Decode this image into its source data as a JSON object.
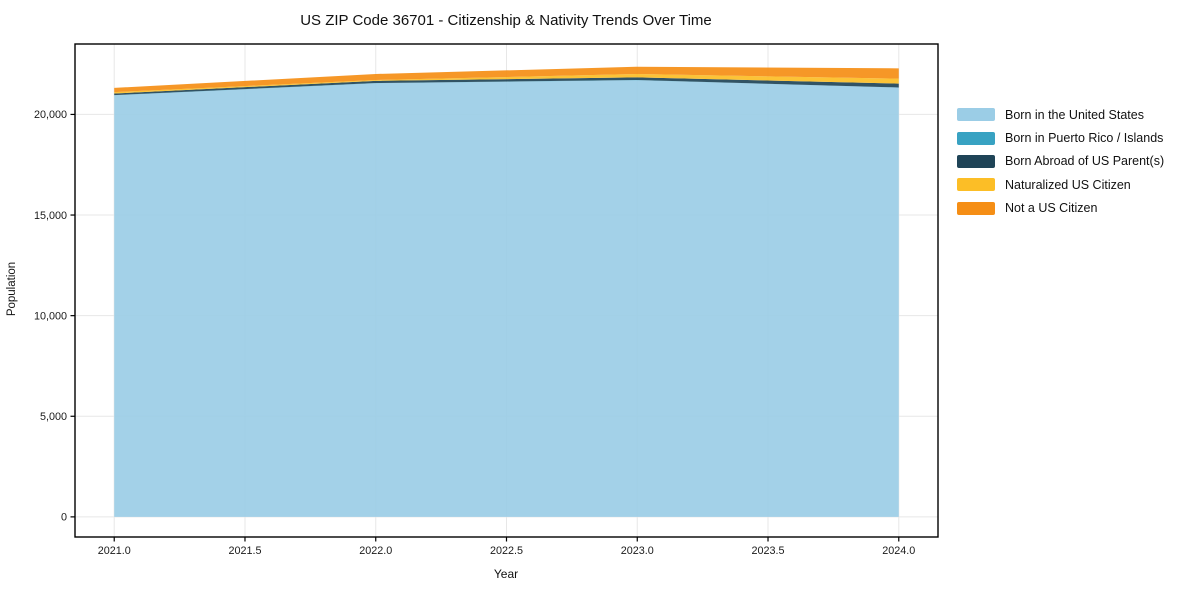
{
  "page": {
    "background": "#ffffff",
    "text_color": "#1a1a1a",
    "grid_color": "#e7e7e7",
    "spine_color": "#000000"
  },
  "chart_data": {
    "type": "area",
    "stacked": true,
    "title": "US ZIP Code 36701 - Citizenship & Nativity Trends Over Time",
    "xlabel": "Year",
    "ylabel": "Population",
    "x": [
      2021,
      2022,
      2023,
      2024
    ],
    "series": [
      {
        "name": "Born in the United States",
        "color": "#9bcde6",
        "values": [
          20950,
          21550,
          21700,
          21330
        ]
      },
      {
        "name": "Born in Puerto Rico / Islands",
        "color": "#38a2c2",
        "values": [
          10,
          10,
          10,
          10
        ]
      },
      {
        "name": "Born Abroad of US Parent(s)",
        "color": "#1f4457",
        "values": [
          80,
          110,
          130,
          190
        ]
      },
      {
        "name": "Naturalized US Citizen",
        "color": "#fcbe26",
        "values": [
          70,
          40,
          170,
          250
        ]
      },
      {
        "name": "Not a US Citizen",
        "color": "#f58e15",
        "values": [
          210,
          300,
          360,
          510
        ]
      }
    ],
    "xlim": [
      2020.85,
      2024.15
    ],
    "ylim": [
      -1000,
      23500
    ],
    "xtick_values": [
      2021.0,
      2021.5,
      2022.0,
      2022.5,
      2023.0,
      2023.5,
      2024.0
    ],
    "xtick_labels": [
      "2021.0",
      "2021.5",
      "2022.0",
      "2022.5",
      "2023.0",
      "2023.5",
      "2024.0"
    ],
    "ytick_values": [
      0,
      5000,
      10000,
      15000,
      20000
    ],
    "ytick_labels": [
      "0",
      "5,000",
      "10,000",
      "15,000",
      "20,000"
    ],
    "grid": true,
    "legend_position": "center-right-outside"
  }
}
